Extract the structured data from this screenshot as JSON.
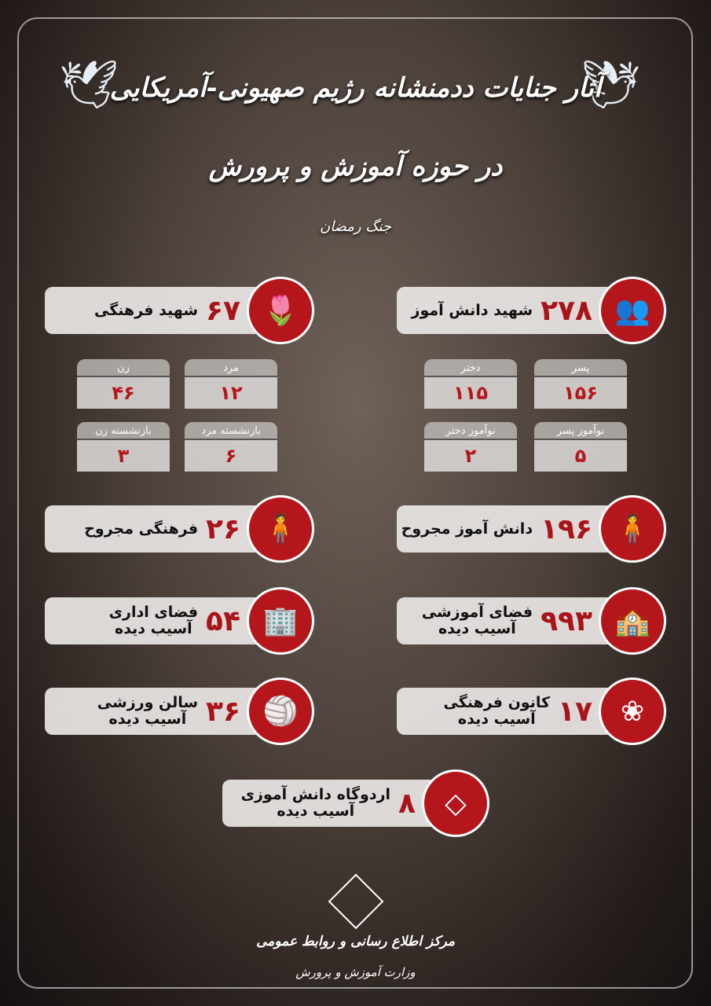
{
  "header": {
    "title_line1": "آثار جنایات ددمنشانه رژیم صهیونی-آمریکایی",
    "title_line2": "در حوزه آموزش و پرورش",
    "subtitle": "جنگ رمضان"
  },
  "colors": {
    "accent": "#b5161c",
    "card": "#e8e5e3"
  },
  "students_killed": {
    "value": "۲۷۸",
    "label": "شهید دانش آموز",
    "icon": "students-icon",
    "breakdown": [
      {
        "label": "پسر",
        "value": "۱۵۶"
      },
      {
        "label": "دختر",
        "value": "۱۱۵"
      },
      {
        "label": "نوآموز پسر",
        "value": "۵"
      },
      {
        "label": "نوآموز دختر",
        "value": "۲"
      }
    ]
  },
  "teachers_killed": {
    "value": "۶۷",
    "label": "شهید فرهنگی",
    "icon": "tulip-icon",
    "breakdown": [
      {
        "label": "مرد",
        "value": "۱۲"
      },
      {
        "label": "زن",
        "value": "۴۶"
      },
      {
        "label": "بازنشسته مرد",
        "value": "۶"
      },
      {
        "label": "بازنشسته زن",
        "value": "۳"
      }
    ]
  },
  "stats": [
    {
      "value": "۱۹۶",
      "label": "دانش آموز مجروح",
      "icon": "injured-person-icon"
    },
    {
      "value": "۲۶",
      "label": "فرهنگی مجروح",
      "icon": "injured-person-icon"
    },
    {
      "value": "۹۹۳",
      "label": "فضای آموزشی",
      "label2": "آسیب دیده",
      "icon": "school-building-icon"
    },
    {
      "value": "۵۴",
      "label": "فضای اداری",
      "label2": "آسیب دیده",
      "icon": "office-building-icon"
    },
    {
      "value": "۱۷",
      "label": "کانون فرهنگی",
      "label2": "آسیب دیده",
      "icon": "lotus-icon"
    },
    {
      "value": "۳۶",
      "label": "سالن ورزشی",
      "label2": "آسیب دیده",
      "icon": "volleyball-icon"
    },
    {
      "value": "۸",
      "label": "اردوگاه دانش آموزی",
      "label2": "آسیب دیده",
      "icon": "kite-icon"
    }
  ],
  "footer": {
    "org": "مرکز اطلاع رسانی و روابط عمومی",
    "ministry": "وزارت آموزش و پرورش"
  }
}
